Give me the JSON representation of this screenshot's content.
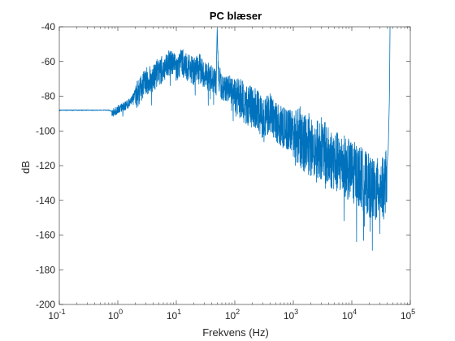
{
  "chart_data": {
    "type": "line",
    "title": "PC blæser",
    "xlabel": "Frekvens (Hz)",
    "ylabel": "dB",
    "xscale": "log",
    "xlim": [
      0.1,
      100000
    ],
    "ylim": [
      -200,
      -40
    ],
    "grid": false,
    "x_tick_labels": [
      {
        "base": "10",
        "exp": "-1"
      },
      {
        "base": "10",
        "exp": "0"
      },
      {
        "base": "10",
        "exp": "1"
      },
      {
        "base": "10",
        "exp": "2"
      },
      {
        "base": "10",
        "exp": "3"
      },
      {
        "base": "10",
        "exp": "4"
      },
      {
        "base": "10",
        "exp": "5"
      }
    ],
    "y_ticks": [
      -200,
      -180,
      -160,
      -140,
      -120,
      -100,
      -80,
      -60,
      -40
    ],
    "colors": {
      "line": "#0072BD",
      "axis": "#262626",
      "background": "#ffffff"
    },
    "series": [
      {
        "x": [
          0.1,
          0.3,
          0.5,
          0.7,
          0.85,
          1.0,
          1.2,
          1.5,
          2.0,
          2.5,
          3.0,
          4.0,
          5.0,
          6.0,
          7.0,
          8.0,
          9.0,
          10,
          12,
          15,
          20,
          25,
          30,
          40,
          48,
          50,
          52,
          60,
          70,
          80,
          100,
          130,
          150,
          200,
          250,
          300,
          400,
          500,
          600,
          800,
          1000,
          1300,
          1500,
          2000,
          2500,
          3000,
          4000,
          5000,
          6000,
          7000,
          8000,
          10000,
          12000,
          15000,
          20000,
          25000,
          30000,
          35000,
          38000,
          40000,
          42000,
          44000,
          45000
        ],
        "y": [
          -88,
          -88,
          -88,
          -88,
          -89,
          -87,
          -86,
          -84,
          -78,
          -74,
          -70,
          -68,
          -64,
          -63,
          -62,
          -58,
          -60,
          -63,
          -58,
          -62,
          -64,
          -62,
          -66,
          -68,
          -70,
          -40,
          -66,
          -74,
          -73,
          -74,
          -77,
          -80,
          -82,
          -84,
          -86,
          -90,
          -88,
          -92,
          -95,
          -97,
          -98,
          -100,
          -102,
          -105,
          -108,
          -106,
          -112,
          -113,
          -116,
          -115,
          -118,
          -120,
          -121,
          -124,
          -128,
          -132,
          -128,
          -130,
          -125,
          -120,
          -110,
          -80,
          -40
        ]
      }
    ]
  }
}
